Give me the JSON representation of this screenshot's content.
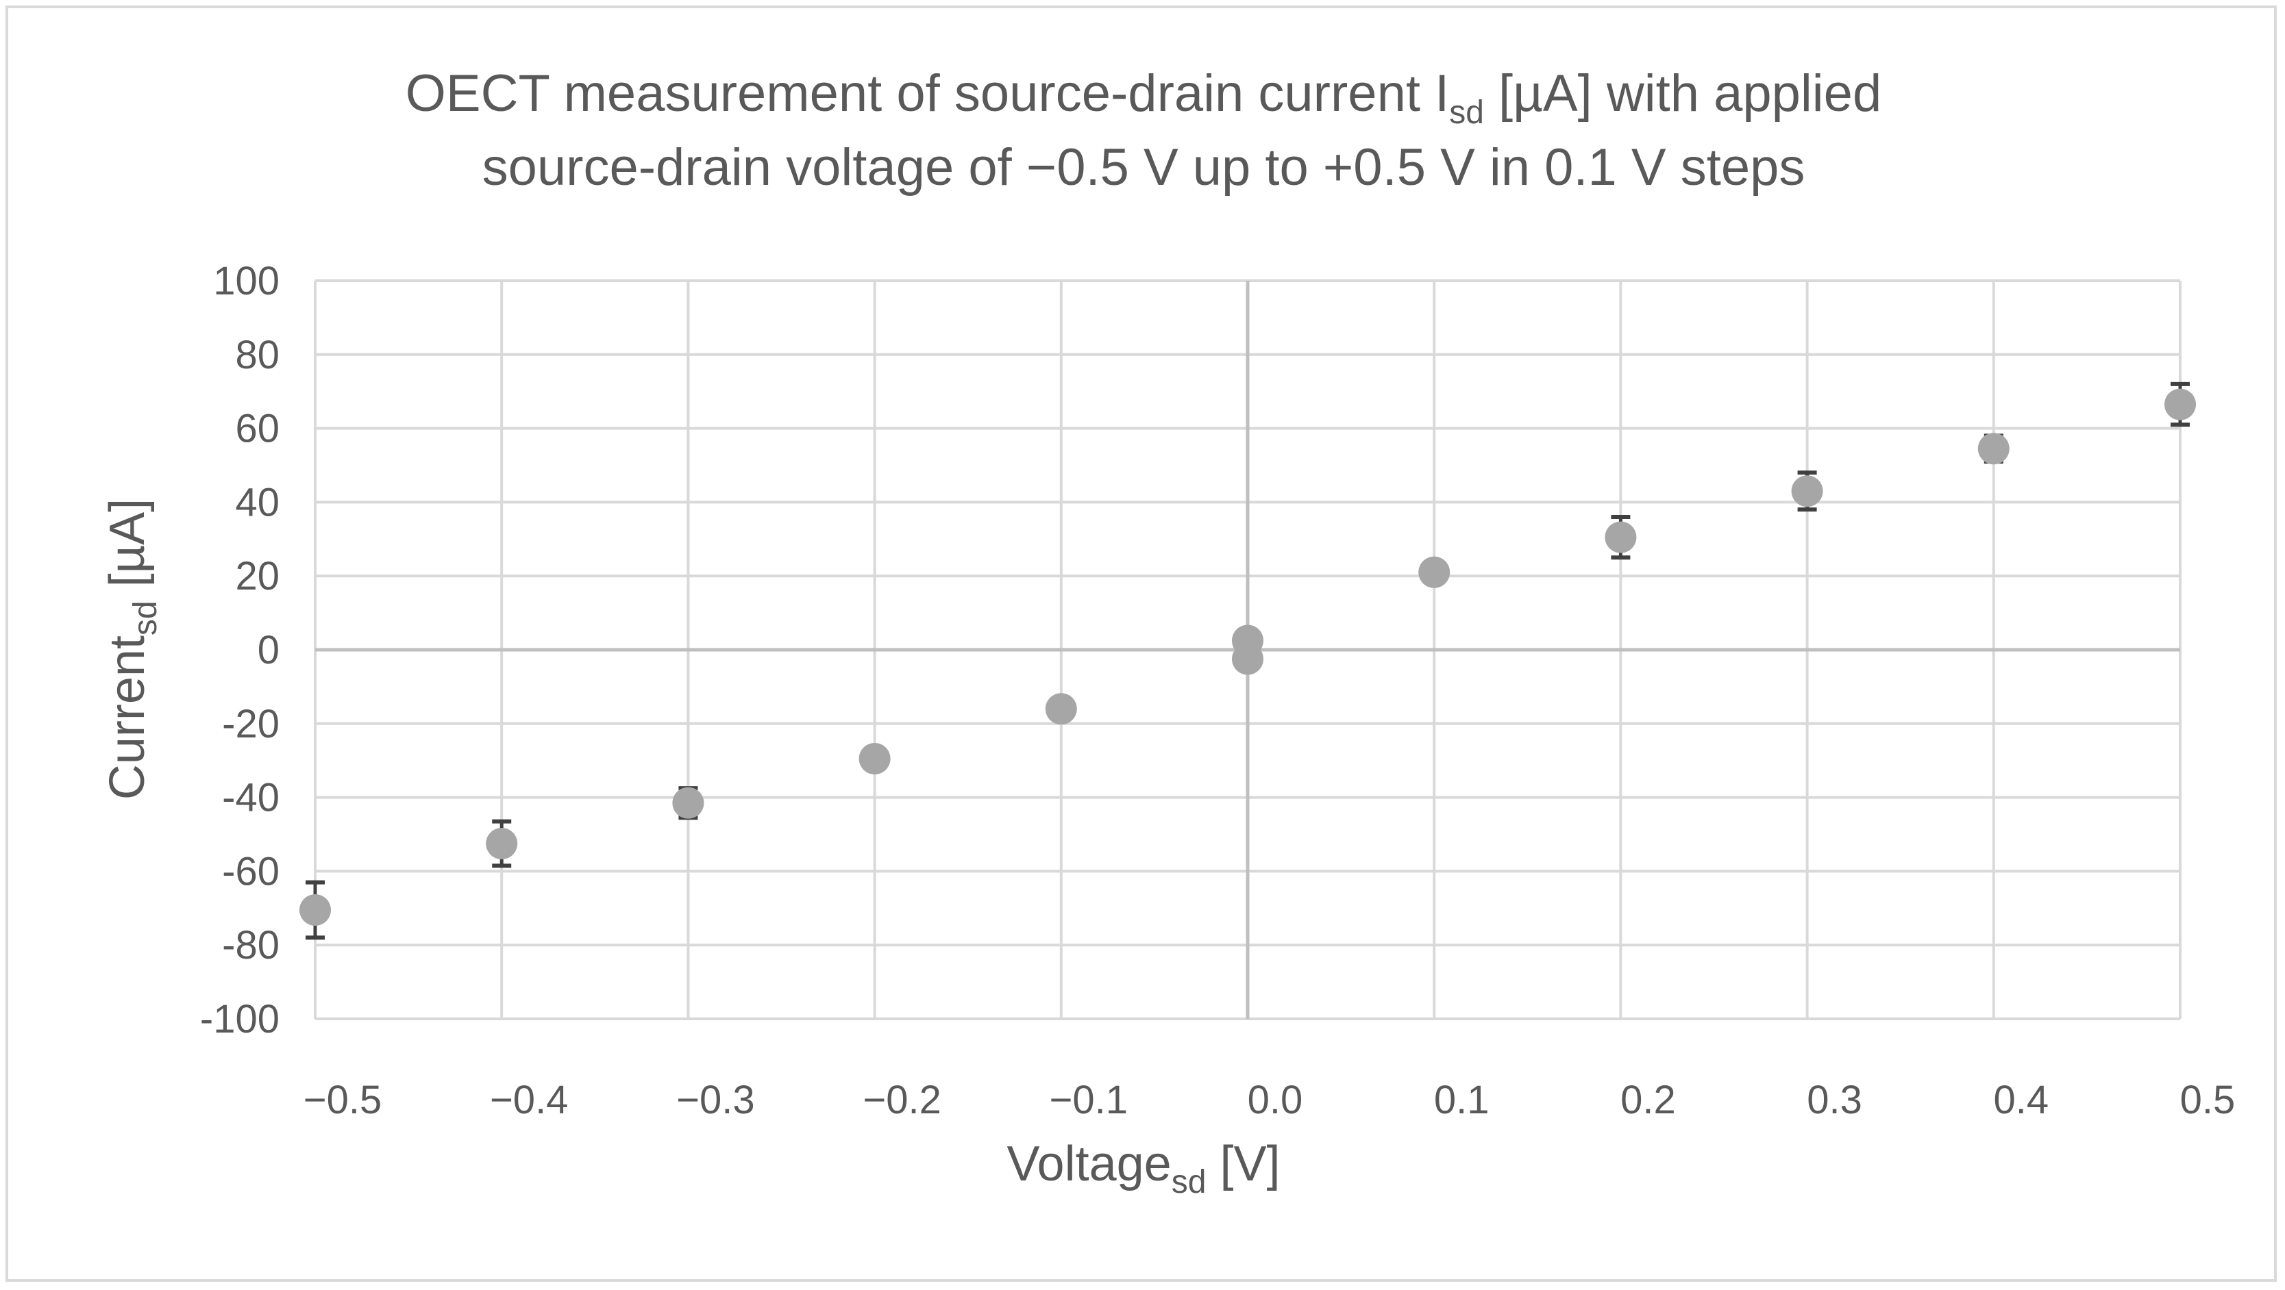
{
  "chart_data": {
    "type": "scatter",
    "title_line1_pre": "OECT measurement of source-drain current I",
    "title_line1_sub": "sd",
    "title_line1_post": " [µA] with applied",
    "title_line2": "source-drain voltage of  −0.5 V up to +0.5 V in 0.1 V steps",
    "xlabel_pre": "Voltage",
    "xlabel_sub": "sd",
    "xlabel_post": "  [V]",
    "ylabel_pre": "Current",
    "ylabel_sub": "sd",
    "ylabel_post": " [µA]",
    "xlim": [
      -0.5,
      0.5
    ],
    "ylim": [
      -100,
      100
    ],
    "x_ticks": [
      "−0.5",
      "−0.4",
      "−0.3",
      "−0.2",
      "−0.1",
      "0.0",
      "0.1",
      "0.2",
      "0.3",
      "0.4",
      "0.5"
    ],
    "y_ticks": [
      "100",
      "80",
      "60",
      "40",
      "20",
      "0",
      "-20",
      "-40",
      "-60",
      "-80",
      "-100"
    ],
    "grid": true,
    "marker_color": "#a6a6a6",
    "errorbar_color": "#404040",
    "points": [
      {
        "x": -0.5,
        "y": -70.5,
        "err": 7.5
      },
      {
        "x": -0.4,
        "y": -52.5,
        "err": 6
      },
      {
        "x": -0.3,
        "y": -41.5,
        "err": 4
      },
      {
        "x": -0.2,
        "y": -29.5,
        "err": 1.5
      },
      {
        "x": -0.1,
        "y": -16,
        "err": 1.5
      },
      {
        "x": 0.0,
        "y": 2.5,
        "err": 0
      },
      {
        "x": 0.0,
        "y": -2.5,
        "err": 0
      },
      {
        "x": 0.1,
        "y": 21,
        "err": 1.5
      },
      {
        "x": 0.2,
        "y": 30.5,
        "err": 5.5
      },
      {
        "x": 0.3,
        "y": 43,
        "err": 5
      },
      {
        "x": 0.4,
        "y": 54.5,
        "err": 3.5
      },
      {
        "x": 0.5,
        "y": 66.5,
        "err": 5.5
      }
    ]
  }
}
